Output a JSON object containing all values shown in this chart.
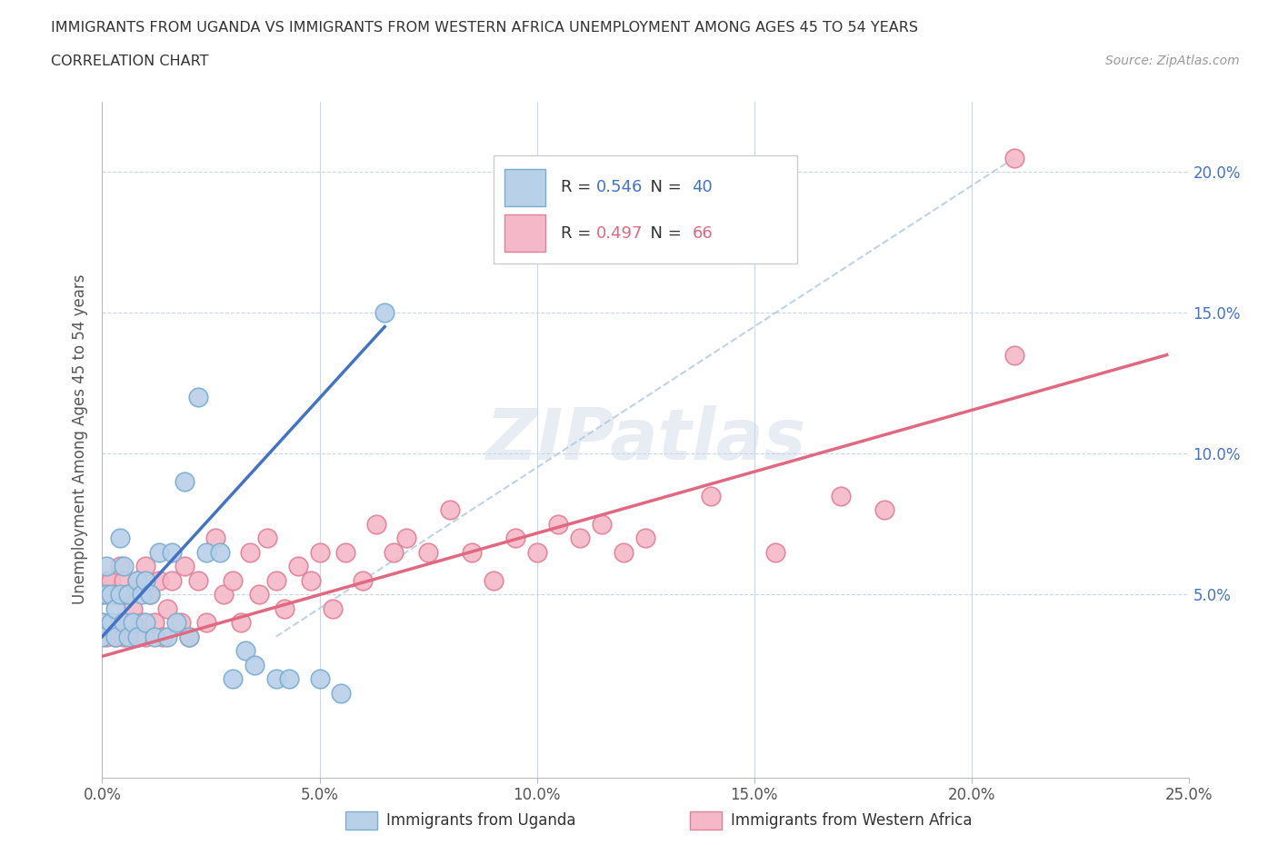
{
  "title_line1": "IMMIGRANTS FROM UGANDA VS IMMIGRANTS FROM WESTERN AFRICA UNEMPLOYMENT AMONG AGES 45 TO 54 YEARS",
  "title_line2": "CORRELATION CHART",
  "source_text": "Source: ZipAtlas.com",
  "ylabel": "Unemployment Among Ages 45 to 54 years",
  "xlim": [
    0.0,
    0.25
  ],
  "ylim": [
    -0.015,
    0.225
  ],
  "xticks": [
    0.0,
    0.05,
    0.1,
    0.15,
    0.2,
    0.25
  ],
  "xtick_labels": [
    "0.0%",
    "5.0%",
    "10.0%",
    "15.0%",
    "20.0%",
    "25.0%"
  ],
  "yticks": [
    0.05,
    0.1,
    0.15,
    0.2
  ],
  "ytick_labels": [
    "5.0%",
    "10.0%",
    "15.0%",
    "20.0%"
  ],
  "uganda_color": "#b8d0e8",
  "uganda_edge_color": "#7aaed0",
  "western_africa_color": "#f5b8c8",
  "western_africa_edge_color": "#e08098",
  "uganda_line_color": "#4472c4",
  "western_africa_line_color": "#e06880",
  "diagonal_line_color": "#b0c8dc",
  "R_uganda": 0.546,
  "N_uganda": 40,
  "R_western": 0.497,
  "N_western": 66,
  "legend_label_uganda": "Immigrants from Uganda",
  "legend_label_western": "Immigrants from Western Africa",
  "watermark_text": "ZIPatlas",
  "uganda_line_x": [
    0.0,
    0.065
  ],
  "uganda_line_y": [
    0.035,
    0.145
  ],
  "western_line_x": [
    0.0,
    0.245
  ],
  "western_line_y": [
    0.028,
    0.135
  ],
  "diag_line_x": [
    0.04,
    0.21
  ],
  "diag_line_y": [
    0.035,
    0.205
  ],
  "uganda_scatter_x": [
    0.0,
    0.0,
    0.0,
    0.001,
    0.001,
    0.002,
    0.002,
    0.003,
    0.003,
    0.004,
    0.004,
    0.005,
    0.005,
    0.006,
    0.006,
    0.007,
    0.008,
    0.008,
    0.009,
    0.01,
    0.01,
    0.011,
    0.012,
    0.013,
    0.015,
    0.016,
    0.017,
    0.019,
    0.02,
    0.022,
    0.024,
    0.027,
    0.03,
    0.033,
    0.035,
    0.04,
    0.043,
    0.05,
    0.055,
    0.065
  ],
  "uganda_scatter_y": [
    0.04,
    0.05,
    0.035,
    0.05,
    0.06,
    0.04,
    0.05,
    0.035,
    0.045,
    0.05,
    0.07,
    0.04,
    0.06,
    0.035,
    0.05,
    0.04,
    0.055,
    0.035,
    0.05,
    0.04,
    0.055,
    0.05,
    0.035,
    0.065,
    0.035,
    0.065,
    0.04,
    0.09,
    0.035,
    0.12,
    0.065,
    0.065,
    0.02,
    0.03,
    0.025,
    0.02,
    0.02,
    0.02,
    0.015,
    0.15
  ],
  "western_scatter_x": [
    0.0,
    0.0,
    0.001,
    0.001,
    0.002,
    0.002,
    0.003,
    0.003,
    0.004,
    0.004,
    0.005,
    0.005,
    0.006,
    0.006,
    0.007,
    0.008,
    0.008,
    0.009,
    0.01,
    0.01,
    0.011,
    0.012,
    0.013,
    0.014,
    0.015,
    0.016,
    0.018,
    0.019,
    0.02,
    0.022,
    0.024,
    0.026,
    0.028,
    0.03,
    0.032,
    0.034,
    0.036,
    0.038,
    0.04,
    0.042,
    0.045,
    0.048,
    0.05,
    0.053,
    0.056,
    0.06,
    0.063,
    0.067,
    0.07,
    0.075,
    0.08,
    0.085,
    0.09,
    0.095,
    0.1,
    0.105,
    0.11,
    0.115,
    0.12,
    0.125,
    0.14,
    0.155,
    0.17,
    0.18,
    0.21,
    0.21
  ],
  "western_scatter_y": [
    0.04,
    0.05,
    0.035,
    0.055,
    0.04,
    0.055,
    0.035,
    0.05,
    0.04,
    0.06,
    0.035,
    0.055,
    0.04,
    0.05,
    0.045,
    0.035,
    0.055,
    0.04,
    0.035,
    0.06,
    0.05,
    0.04,
    0.055,
    0.035,
    0.045,
    0.055,
    0.04,
    0.06,
    0.035,
    0.055,
    0.04,
    0.07,
    0.05,
    0.055,
    0.04,
    0.065,
    0.05,
    0.07,
    0.055,
    0.045,
    0.06,
    0.055,
    0.065,
    0.045,
    0.065,
    0.055,
    0.075,
    0.065,
    0.07,
    0.065,
    0.08,
    0.065,
    0.055,
    0.07,
    0.065,
    0.075,
    0.07,
    0.075,
    0.065,
    0.07,
    0.085,
    0.065,
    0.085,
    0.08,
    0.135,
    0.205
  ]
}
